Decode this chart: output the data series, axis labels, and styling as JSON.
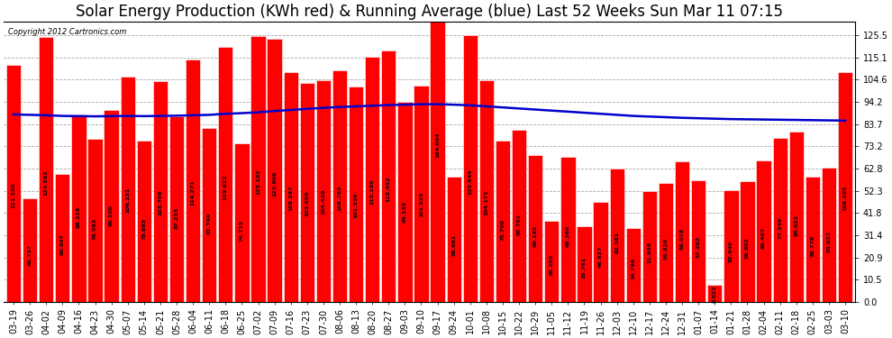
{
  "title": "Solar Energy Production (KWh red) & Running Average (blue) Last 52 Weeks Sun Mar 11 07:15",
  "copyright": "Copyright 2012 Cartronics.com",
  "bar_color": "#FF0000",
  "avg_line_color": "#0000CC",
  "background_color": "#FFFFFF",
  "grid_color": "#AAAAAA",
  "categories": [
    "03-19",
    "03-26",
    "04-02",
    "04-09",
    "04-16",
    "04-23",
    "04-30",
    "05-07",
    "05-14",
    "05-21",
    "05-28",
    "06-04",
    "06-11",
    "06-18",
    "06-25",
    "07-02",
    "07-09",
    "07-16",
    "07-23",
    "07-30",
    "08-06",
    "08-13",
    "08-20",
    "08-27",
    "09-03",
    "09-10",
    "09-17",
    "09-24",
    "10-01",
    "10-08",
    "10-15",
    "10-22",
    "10-29",
    "11-05",
    "11-12",
    "11-19",
    "11-26",
    "12-03",
    "12-10",
    "12-17",
    "12-24",
    "12-31",
    "01-07",
    "01-14",
    "01-21",
    "01-28",
    "02-04",
    "02-11",
    "02-18",
    "02-25",
    "03-03",
    "03-10"
  ],
  "values": [
    111.33,
    48.737,
    124.582,
    60.007,
    88.216,
    76.583,
    90.1,
    106.151,
    75.885,
    103.709,
    87.233,
    114.271,
    81.749,
    119.822,
    74.715,
    125.102,
    123.906,
    108.297,
    103.059,
    104.429,
    108.783,
    101.336,
    115.18,
    118.452,
    94.133,
    101.925,
    164.094,
    58.981,
    125.545,
    104.171,
    75.7,
    80.781,
    69.145,
    38.285,
    68.36,
    35.761,
    46.937,
    62.581,
    34.796,
    51.958,
    55.826,
    66.078,
    57.282,
    8.022,
    52.64,
    56.802,
    66.487,
    77.349,
    80.022,
    58.776,
    63.022,
    108.105
  ],
  "running_avg": [
    88.2,
    88.0,
    87.8,
    87.5,
    87.4,
    87.3,
    87.4,
    87.5,
    87.4,
    87.5,
    87.6,
    87.8,
    88.0,
    88.5,
    88.8,
    89.2,
    89.8,
    90.3,
    90.8,
    91.3,
    91.7,
    92.0,
    92.3,
    92.6,
    92.8,
    93.0,
    93.0,
    92.8,
    92.5,
    92.0,
    91.5,
    91.0,
    90.5,
    90.0,
    89.5,
    89.0,
    88.5,
    88.0,
    87.5,
    87.2,
    86.9,
    86.6,
    86.4,
    86.2,
    86.0,
    85.9,
    85.8,
    85.7,
    85.6,
    85.5,
    85.4,
    85.3
  ],
  "yticks": [
    0.0,
    10.5,
    20.9,
    31.4,
    41.8,
    52.3,
    62.8,
    73.2,
    83.7,
    94.2,
    104.6,
    115.1,
    125.5
  ],
  "ylim": [
    0.0,
    132.0
  ],
  "title_fontsize": 12,
  "tick_fontsize": 7,
  "value_label_fontsize": 4.5
}
